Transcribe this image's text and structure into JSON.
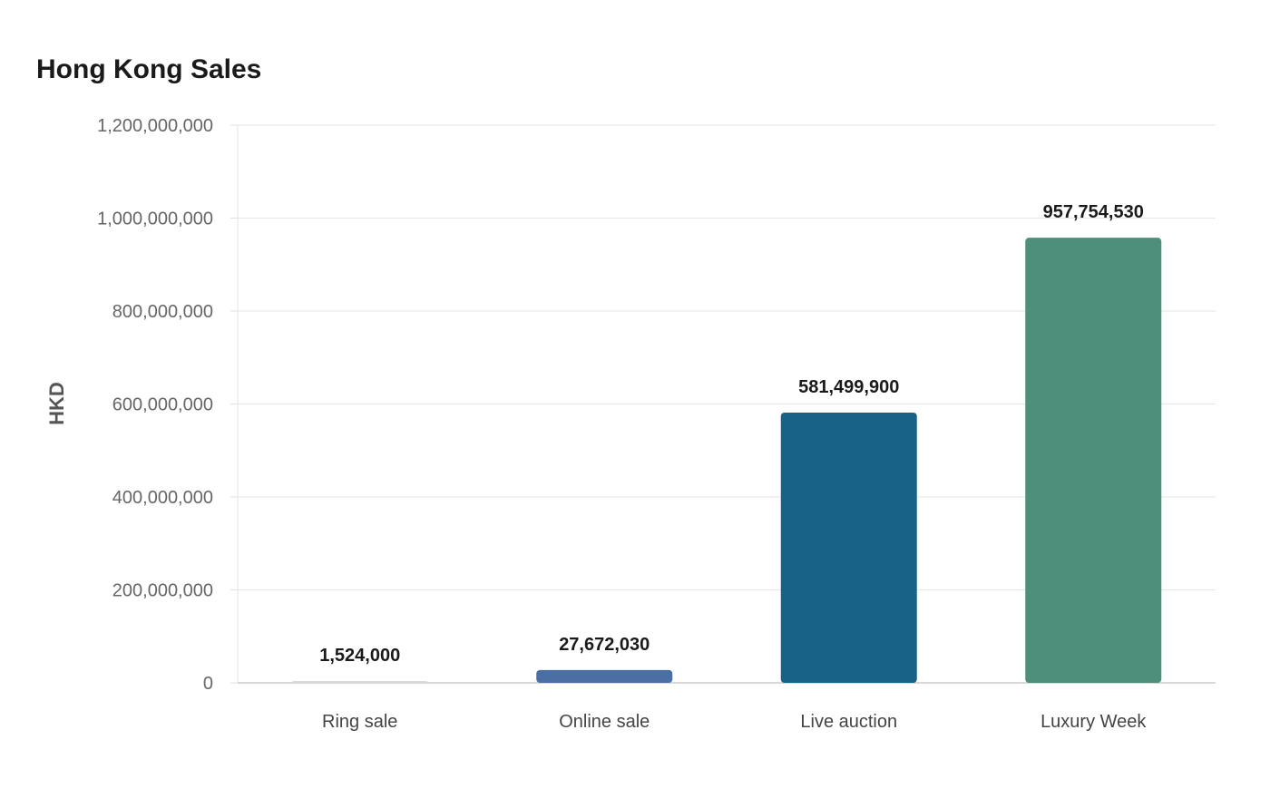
{
  "chart_data": {
    "type": "bar",
    "title": "Hong Kong Sales",
    "xlabel": "",
    "ylabel": "HKD",
    "categories": [
      "Ring sale",
      "Online sale",
      "Live auction",
      "Luxury Week"
    ],
    "values": [
      1524000,
      27672030,
      581499900,
      957754530
    ],
    "value_labels": [
      "1,524,000",
      "27,672,030",
      "581,499,900",
      "957,754,530"
    ],
    "colors": [
      "#d9d9d9",
      "#4a6fa5",
      "#186287",
      "#4e8f7c"
    ],
    "ylim": [
      0,
      1200000000
    ],
    "yticks": [
      0,
      200000000,
      400000000,
      600000000,
      800000000,
      1000000000,
      1200000000
    ],
    "ytick_labels": [
      "0",
      "200,000,000",
      "400,000,000",
      "600,000,000",
      "800,000,000",
      "1,000,000,000",
      "1,200,000,000"
    ],
    "grid": true,
    "legend": "none"
  }
}
